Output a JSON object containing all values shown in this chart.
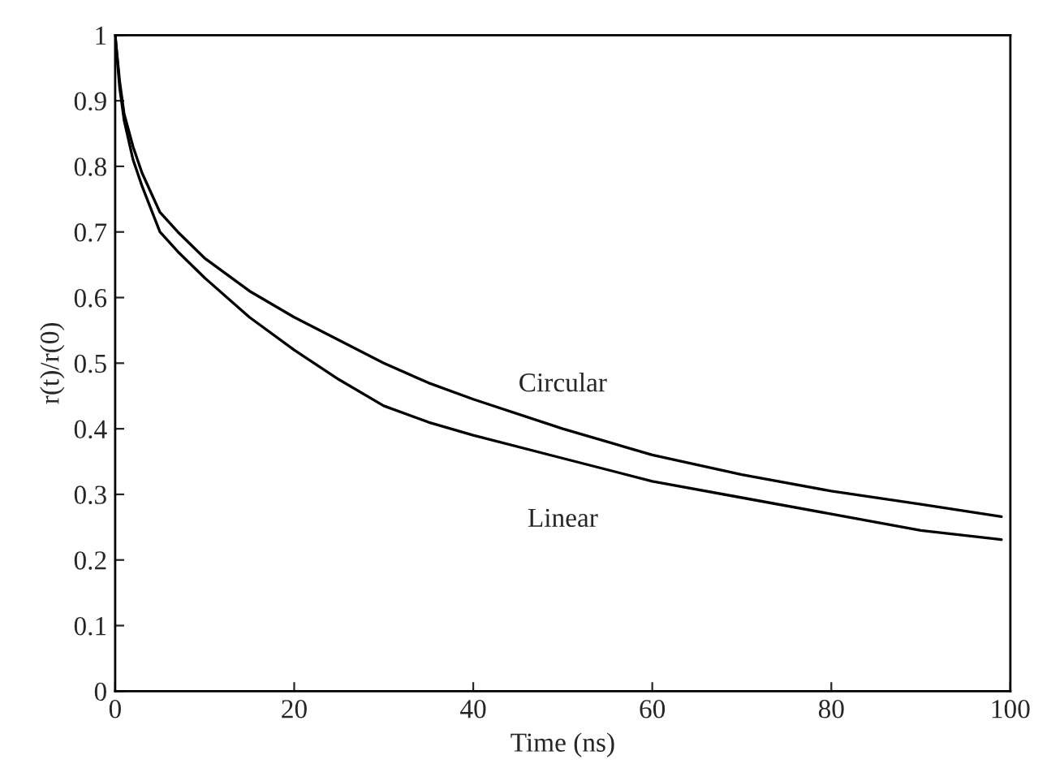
{
  "chart_data": {
    "type": "line",
    "xlabel": "Time (ns)",
    "ylabel": "r(t)/r(0)",
    "series": [
      {
        "name": "Circular",
        "color": "#000000",
        "x": [
          0,
          0.5,
          1,
          2,
          3,
          5,
          7,
          10,
          15,
          20,
          25,
          30,
          35,
          40,
          50,
          60,
          70,
          80,
          90,
          99
        ],
        "values": [
          1.0,
          0.93,
          0.88,
          0.83,
          0.79,
          0.73,
          0.7,
          0.66,
          0.61,
          0.57,
          0.535,
          0.5,
          0.47,
          0.445,
          0.4,
          0.36,
          0.33,
          0.305,
          0.285,
          0.266
        ]
      },
      {
        "name": "Linear",
        "color": "#000000",
        "x": [
          0,
          0.5,
          1,
          2,
          3,
          5,
          7,
          10,
          15,
          20,
          25,
          30,
          35,
          40,
          50,
          60,
          70,
          80,
          90,
          99
        ],
        "values": [
          1.0,
          0.92,
          0.87,
          0.81,
          0.77,
          0.7,
          0.67,
          0.63,
          0.57,
          0.52,
          0.475,
          0.435,
          0.41,
          0.39,
          0.355,
          0.32,
          0.295,
          0.27,
          0.245,
          0.231
        ]
      }
    ],
    "xlim": [
      0,
      100
    ],
    "ylim": [
      0,
      1
    ],
    "xticks": [
      0,
      20,
      40,
      60,
      80,
      100
    ],
    "yticks": [
      0,
      0.1,
      0.2,
      0.3,
      0.4,
      0.5,
      0.6,
      0.7,
      0.8,
      0.9,
      1
    ],
    "grid": false,
    "legend": false,
    "marker": "none",
    "line_style": "solid"
  }
}
